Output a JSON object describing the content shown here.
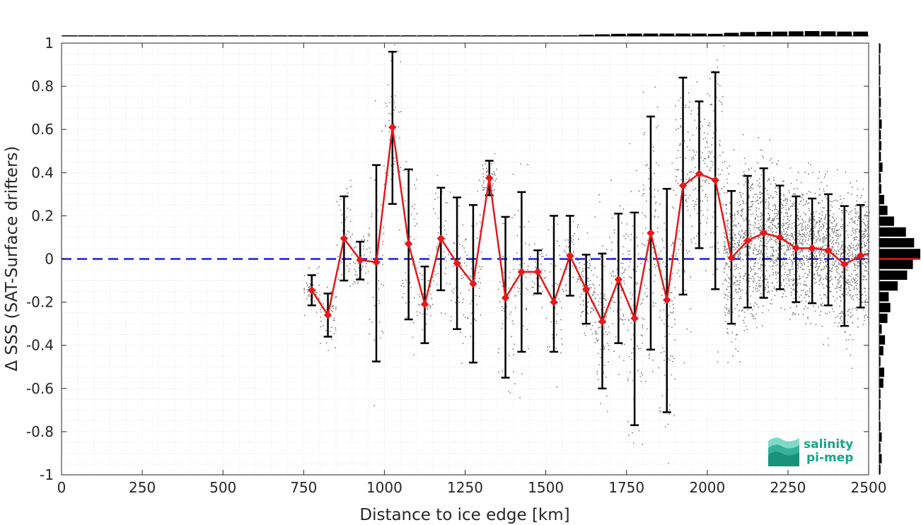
{
  "chart_data": {
    "type": "line",
    "xlabel": "Distance to ice edge [km]",
    "ylabel": "Δ SSS (SAT-Surface drifters)",
    "xlim": [
      0,
      2500
    ],
    "ylim": [
      -1,
      1
    ],
    "xticks": [
      0,
      250,
      500,
      750,
      1000,
      1250,
      1500,
      1750,
      2000,
      2250,
      2500
    ],
    "yticks": [
      -1,
      -0.8,
      -0.6,
      -0.4,
      -0.2,
      0,
      0.2,
      0.4,
      0.6,
      0.8,
      1
    ],
    "xtick_labels": [
      "0",
      "250",
      "500",
      "750",
      "1000",
      "1250",
      "1500",
      "1750",
      "2000",
      "2250",
      "2500"
    ],
    "ytick_labels": [
      "-1",
      "-0.8",
      "-0.6",
      "-0.4",
      "-0.2",
      "0",
      "0.2",
      "0.4",
      "0.6",
      "0.8",
      "1"
    ],
    "grid": true,
    "reference_line": {
      "y": 0,
      "color": "#1f1fe0",
      "style": "dashed"
    },
    "series": [
      {
        "color": "#e31a1c",
        "marker": "diamond",
        "x": [
          775,
          825,
          875,
          925,
          975,
          1025,
          1075,
          1125,
          1175,
          1225,
          1275,
          1325,
          1375,
          1425,
          1475,
          1525,
          1575,
          1625,
          1675,
          1725,
          1775,
          1825,
          1875,
          1925,
          1975,
          2025,
          2075,
          2125,
          2175,
          2225,
          2275,
          2325,
          2375,
          2425,
          2475,
          2500
        ],
        "y": [
          -0.145,
          -0.26,
          0.095,
          -0.005,
          -0.015,
          0.61,
          0.07,
          -0.21,
          0.095,
          -0.02,
          -0.115,
          0.375,
          -0.18,
          -0.06,
          -0.06,
          -0.2,
          0.015,
          -0.14,
          -0.29,
          -0.095,
          -0.275,
          0.12,
          -0.19,
          0.34,
          0.395,
          0.365,
          0.005,
          0.085,
          0.12,
          0.1,
          0.05,
          0.05,
          0.04,
          -0.025,
          0.015,
          0.025
        ],
        "err_low": [
          -0.215,
          -0.36,
          -0.1,
          -0.095,
          -0.475,
          0.255,
          -0.28,
          -0.39,
          -0.145,
          -0.325,
          -0.48,
          0.295,
          -0.55,
          -0.43,
          -0.16,
          -0.43,
          -0.17,
          -0.3,
          -0.6,
          -0.39,
          -0.77,
          -0.42,
          -0.71,
          -0.165,
          0.05,
          -0.14,
          -0.3,
          -0.225,
          -0.18,
          -0.14,
          -0.2,
          -0.205,
          -0.215,
          -0.31,
          -0.225,
          null
        ],
        "err_high": [
          -0.075,
          -0.16,
          0.29,
          0.08,
          0.435,
          0.96,
          0.415,
          -0.035,
          0.33,
          0.285,
          0.25,
          0.455,
          0.195,
          0.31,
          0.04,
          0.2,
          0.2,
          0.02,
          0.025,
          0.21,
          0.215,
          0.66,
          0.325,
          0.84,
          0.73,
          0.865,
          0.315,
          0.385,
          0.42,
          0.34,
          0.29,
          0.28,
          0.3,
          0.245,
          0.25,
          null
        ]
      }
    ],
    "scatter_color": "#808080",
    "top_histogram": {
      "bin_width": 50,
      "start": 0,
      "heights": [
        0.02,
        0.02,
        0.02,
        0.02,
        0.02,
        0.02,
        0.02,
        0.02,
        0.02,
        0.02,
        0.02,
        0.02,
        0.02,
        0.02,
        0.02,
        0.02,
        0.05,
        0.05,
        0.05,
        0.05,
        0.05,
        0.05,
        0.05,
        0.05,
        0.1,
        0.1,
        0.1,
        0.1,
        0.1,
        0.1,
        0.1,
        0.1,
        0.25,
        0.35,
        0.45,
        0.5,
        0.5,
        0.5,
        0.5,
        0.5,
        0.45,
        0.65,
        0.8,
        0.85,
        0.9,
        0.95,
        1.0,
        0.95,
        0.9,
        0.9
      ]
    },
    "right_histogram": {
      "bin_width": 0.05,
      "start": -1,
      "heights": [
        0.03,
        0.06,
        0.03,
        0.06,
        0.03,
        0.02,
        0.03,
        0.03,
        0.1,
        0.12,
        0.03,
        0.1,
        0.14,
        0.06,
        0.2,
        0.27,
        0.23,
        0.45,
        0.68,
        0.82,
        1.0,
        0.85,
        0.65,
        0.36,
        0.2,
        0.12,
        0.05,
        0.04,
        0.08,
        0.04,
        0.05,
        0.04,
        0.06,
        0.03,
        0.04,
        0.03,
        0.02,
        0.03,
        0.02,
        0.03
      ],
      "median_line_color": "#e31a1c",
      "median": 0
    }
  },
  "logo": {
    "line1": "salinity",
    "line2": "pi-mep",
    "color": "#17a589"
  }
}
